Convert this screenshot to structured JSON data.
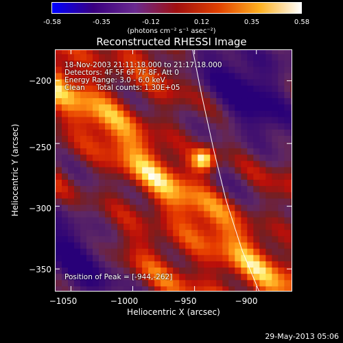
{
  "colorbar": {
    "ticks": [
      "-0.58",
      "-0.35",
      "-0.12",
      "0.12",
      "0.35",
      "0.58"
    ],
    "units": "(photons cm⁻² s⁻¹ asec⁻²)",
    "colors": [
      "#0000ff",
      "#3a0080",
      "#6a2a90",
      "#a01010",
      "#e04000",
      "#ffb020",
      "#ffffff"
    ]
  },
  "title": "Reconstructed RHESSI Image",
  "annotations": {
    "line1": "18-Nov-2003 21:11:18.000 to 21:17:18.000",
    "line2": "Detectors: 4F 5F 6F 7F 8F, Att 0",
    "line3": "Energy Range: 3.0 - 6.0 keV",
    "line4": "Clean     Total counts: 1.30E+05",
    "peak": "Position of Peak = [-944,-262]"
  },
  "footer": {
    "timestamp": "29-May-2013 05:06"
  },
  "chart_data": {
    "type": "heatmap",
    "title": "Reconstructed RHESSI Image",
    "xlabel": "Heliocentric X (arcsec)",
    "ylabel": "Heliocentric Y (arcsec)",
    "xlim": [
      -1063,
      -871
    ],
    "ylim": [
      -368,
      -175
    ],
    "xticks": [
      -1050,
      -1000,
      -950,
      -900
    ],
    "xtick_labels": [
      "−1050",
      "−1000",
      "−950",
      "−900"
    ],
    "yticks": [
      -200,
      -250,
      -300,
      -350
    ],
    "ytick_labels": [
      "−200",
      "−250",
      "−300",
      "−350"
    ],
    "zlim": [
      -0.58,
      0.58
    ],
    "peak": [
      -944,
      -262
    ],
    "limb_curve": [
      [
        -952,
        -175
      ],
      [
        -945,
        -210
      ],
      [
        -935,
        -255
      ],
      [
        -925,
        -295
      ],
      [
        -912,
        -335
      ],
      [
        -898,
        -368
      ]
    ]
  }
}
